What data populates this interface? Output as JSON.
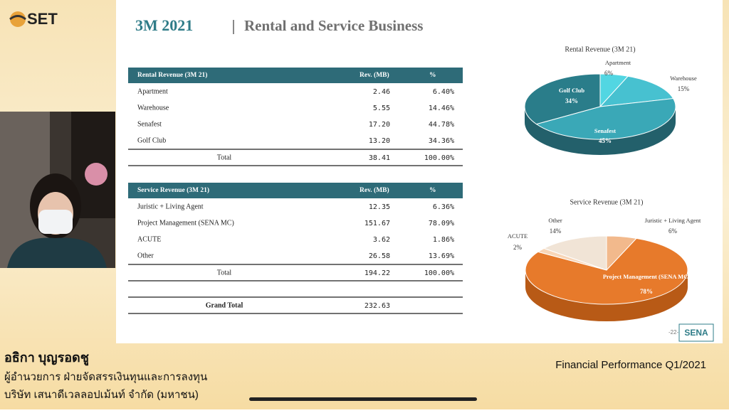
{
  "logo": "SET",
  "slide": {
    "title": "3M 2021",
    "subtitle": "Rental and Service Business",
    "page": "-22-",
    "brand": "SENA",
    "rental_table": {
      "header": [
        "Rental Revenue (3M 21)",
        "Rev. (MB)",
        "%"
      ],
      "rows": [
        [
          "Apartment",
          "2.46",
          "6.40%"
        ],
        [
          "Warehouse",
          "5.55",
          "14.46%"
        ],
        [
          "Senafest",
          "17.20",
          "44.78%"
        ],
        [
          "Golf Club",
          "13.20",
          "34.36%"
        ]
      ],
      "total": [
        "Total",
        "38.41",
        "100.00%"
      ]
    },
    "service_table": {
      "header": [
        "Service Revenue (3M 21)",
        "Rev. (MB)",
        "%"
      ],
      "rows": [
        [
          "Juristic + Living Agent",
          "12.35",
          "6.36%"
        ],
        [
          "Project Management (SENA MC)",
          "151.67",
          "78.09%"
        ],
        [
          "ACUTE",
          "3.62",
          "1.86%"
        ],
        [
          "Other",
          "26.58",
          "13.69%"
        ]
      ],
      "total": [
        "Total",
        "194.22",
        "100.00%"
      ]
    },
    "grand_total": [
      "Grand Total",
      "232.63"
    ]
  },
  "chart_data": [
    {
      "type": "pie",
      "title": "Rental Revenue (3M 21)",
      "categories": [
        "Apartment",
        "Warehouse",
        "Senafest",
        "Golf Club"
      ],
      "values": [
        6,
        15,
        45,
        34
      ],
      "value_labels": [
        "6%",
        "15%",
        "45%",
        "34%"
      ],
      "colors": [
        "#52d6e2",
        "#47c1d0",
        "#3aa8b7",
        "#2a7d8a"
      ]
    },
    {
      "type": "pie",
      "title": "Service Revenue (3M 21)",
      "categories": [
        "Juristic + Living Agent",
        "Project Management (SENA MC)",
        "ACUTE",
        "Other"
      ],
      "values": [
        6,
        78,
        2,
        14
      ],
      "value_labels": [
        "6%",
        "78%",
        "2%",
        "14%"
      ],
      "colors": [
        "#f2b98c",
        "#e77a2b",
        "#f8d6b8",
        "#f1e4d6"
      ]
    }
  ],
  "presenter": {
    "name": "อธิกา บุญรอดชู",
    "position": "ผู้อำนวยการ ฝ่ายจัดสรรเงินทุนและการลงทุน",
    "company": "บริษัท เสนาดีเวลลอปเม้นท์ จำกัด (มหาชน)"
  },
  "program": "Financial Performance Q1/2021"
}
